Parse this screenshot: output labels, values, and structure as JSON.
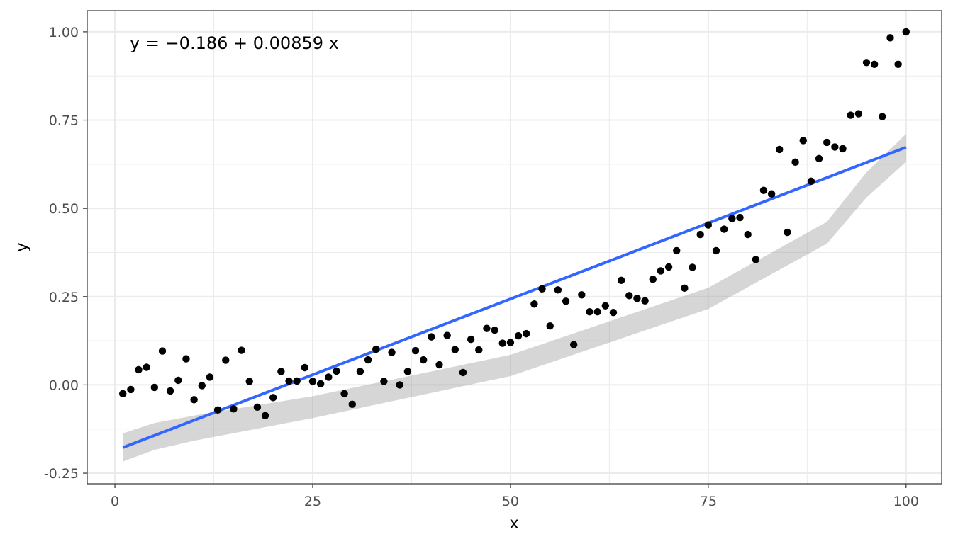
{
  "chart_data": {
    "type": "scatter",
    "title": "",
    "xlabel": "x",
    "ylabel": "y",
    "xlim": [
      -3.5,
      104.5
    ],
    "ylim": [
      -0.28,
      1.06
    ],
    "xticks": [
      0,
      25,
      50,
      75,
      100
    ],
    "yticks": [
      -0.25,
      0,
      0.25,
      0.5,
      0.75,
      1.0
    ],
    "xtick_labels": [
      "0",
      "25",
      "50",
      "75",
      "100"
    ],
    "ytick_labels": [
      "-0.25",
      "0.00",
      "0.25",
      "0.50",
      "0.75",
      "1.00"
    ],
    "grid": true,
    "legend": "none",
    "annotation": "y = −0.186 + 0.00859 x",
    "colors": {
      "points": "#000000",
      "fit_line": "#3366ff",
      "confidence_band": "#999999",
      "grid": "#ebebeb",
      "panel_border": "#333333"
    },
    "fit": {
      "intercept": -0.186,
      "slope": 0.00859,
      "x_range": [
        1,
        100
      ],
      "ci_lower": [
        -0.217,
        -0.184,
        -0.158,
        -0.094,
        0.025,
        0.215,
        0.4,
        0.531,
        0.632
      ],
      "ci_upper": [
        -0.137,
        -0.108,
        -0.087,
        -0.032,
        0.085,
        0.275,
        0.462,
        0.602,
        0.711
      ],
      "ci_x": [
        1,
        5,
        10,
        25,
        50,
        75,
        90,
        95,
        100
      ]
    },
    "series": [
      {
        "x": [
          1,
          2,
          3,
          4,
          5,
          6,
          7,
          8,
          9,
          10,
          11,
          12,
          13,
          14,
          15,
          16,
          17,
          18,
          19,
          20,
          21,
          22,
          23,
          24,
          25,
          26,
          27,
          28,
          29,
          30,
          31,
          32,
          33,
          34,
          35,
          36,
          37,
          38,
          39,
          40,
          41,
          42,
          43,
          44,
          45,
          46,
          47,
          48,
          49,
          50,
          51,
          52,
          53,
          54,
          55,
          56,
          57,
          58,
          59,
          60,
          61,
          62,
          63,
          64,
          65,
          66,
          67,
          68,
          69,
          70,
          71,
          72,
          73,
          74,
          75,
          76,
          77,
          78,
          79,
          80,
          81,
          82,
          83,
          84,
          85,
          86,
          87,
          88,
          89,
          90,
          91,
          92,
          93,
          94,
          95,
          96,
          97,
          98,
          99,
          100
        ],
        "y": [
          -0.025,
          -0.013,
          0.043,
          0.05,
          -0.007,
          0.096,
          -0.017,
          0.013,
          0.074,
          -0.042,
          -0.002,
          0.022,
          -0.071,
          0.07,
          -0.068,
          0.098,
          0.01,
          -0.063,
          -0.087,
          -0.036,
          0.038,
          0.011,
          0.011,
          0.049,
          0.01,
          0.003,
          0.022,
          0.039,
          -0.025,
          -0.055,
          0.038,
          0.071,
          0.101,
          0.01,
          0.092,
          0.0,
          0.038,
          0.097,
          0.071,
          0.136,
          0.057,
          0.14,
          0.1,
          0.035,
          0.129,
          0.099,
          0.16,
          0.155,
          0.118,
          0.12,
          0.139,
          0.145,
          0.229,
          0.272,
          0.167,
          0.269,
          0.237,
          0.114,
          0.255,
          0.207,
          0.207,
          0.224,
          0.205,
          0.296,
          0.253,
          0.245,
          0.238,
          0.299,
          0.323,
          0.334,
          0.38,
          0.274,
          0.333,
          0.426,
          0.453,
          0.38,
          0.441,
          0.471,
          0.474,
          0.426,
          0.355,
          0.551,
          0.541,
          0.667,
          0.432,
          0.631,
          0.692,
          0.577,
          0.641,
          0.687,
          0.674,
          0.669,
          0.764,
          0.768,
          0.913,
          0.908,
          0.76,
          0.983,
          0.908,
          1.0
        ]
      }
    ]
  }
}
